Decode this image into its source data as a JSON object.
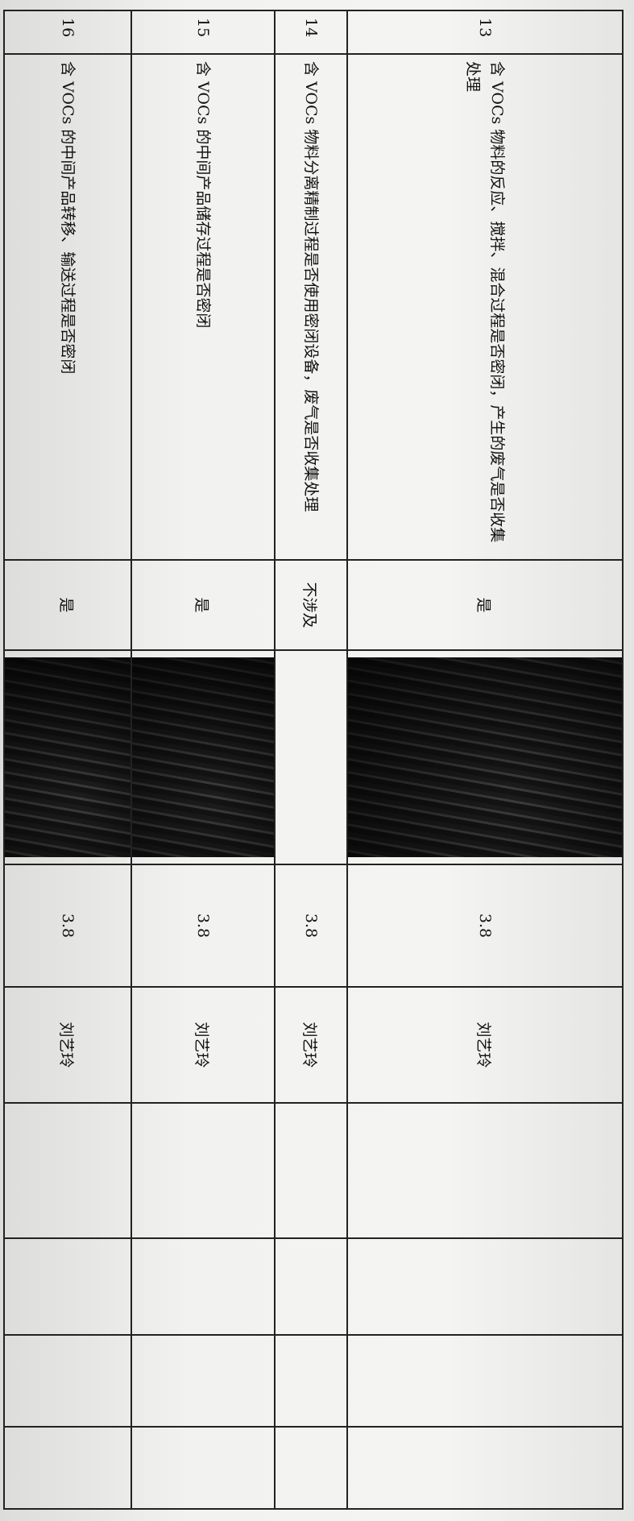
{
  "table": {
    "rows": [
      {
        "no": "13",
        "item": "含 VOCs 物料的反应、搅拌、混合过程是否密闭，产生的废气是否收集处理",
        "result": "是",
        "score": "3.8",
        "inspector": "刘艺玲",
        "photo": true
      },
      {
        "no": "14",
        "item": "含 VOCs 物料分离精制过程是否使用密闭设备，废气是否收集处理",
        "result": "不涉及",
        "score": "3.8",
        "inspector": "刘艺玲",
        "photo": false
      },
      {
        "no": "15",
        "item": "含 VOCs 的中间产品储存过程是否密闭",
        "result": "是",
        "score": "3.8",
        "inspector": "刘艺玲",
        "photo": true
      },
      {
        "no": "16",
        "item": "含 VOCs 的中间产品转移、输送过程是否密闭",
        "result": "是",
        "score": "3.8",
        "inspector": "刘艺玲",
        "photo": true
      }
    ]
  }
}
